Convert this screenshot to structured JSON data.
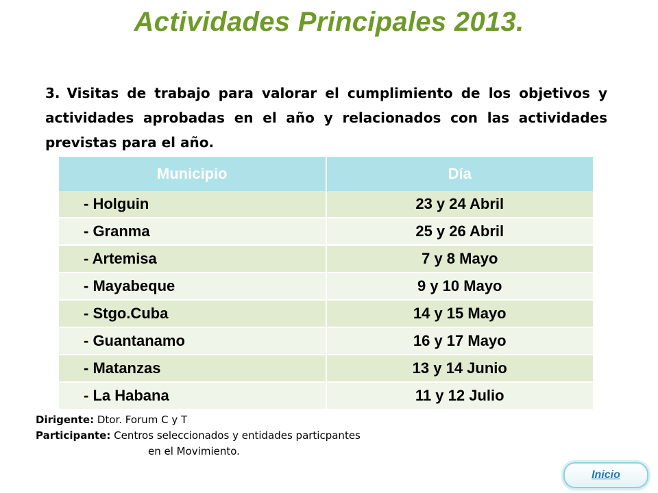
{
  "title": "Actividades Principales 2013.",
  "intro": {
    "number": "3.",
    "text": "Visitas de trabajo para valorar el cumplimiento de los objetivos y actividades aprobadas en el año y relacionados con las actividades previstas para el año."
  },
  "table": {
    "headers": [
      "Municipio",
      "Día"
    ],
    "rows": [
      {
        "municipio": "- Holguin",
        "dia": "23 y 24 Abril"
      },
      {
        "municipio": "- Granma",
        "dia": "25 y 26 Abril"
      },
      {
        "municipio": "- Artemisa",
        "dia": "7 y 8 Mayo"
      },
      {
        "municipio": "- Mayabeque",
        "dia": "9 y 10 Mayo"
      },
      {
        "municipio": "- Stgo.Cuba",
        "dia": "14 y 15 Mayo"
      },
      {
        "municipio": "- Guantanamo",
        "dia": "16 y 17 Mayo"
      },
      {
        "municipio": "- Matanzas",
        "dia": "13 y 14 Junio"
      },
      {
        "municipio": "- La Habana",
        "dia": "11 y 12 Julio"
      }
    ]
  },
  "footer": {
    "dirigente_label": "Dirigente:",
    "dirigente_value": "Dtor. Forum C y T",
    "participante_label": "Participante:",
    "participante_value": "Centros seleccionados y entidades particpantes",
    "participante_cont": "en el Movimiento."
  },
  "inicio_label": "Inicio"
}
